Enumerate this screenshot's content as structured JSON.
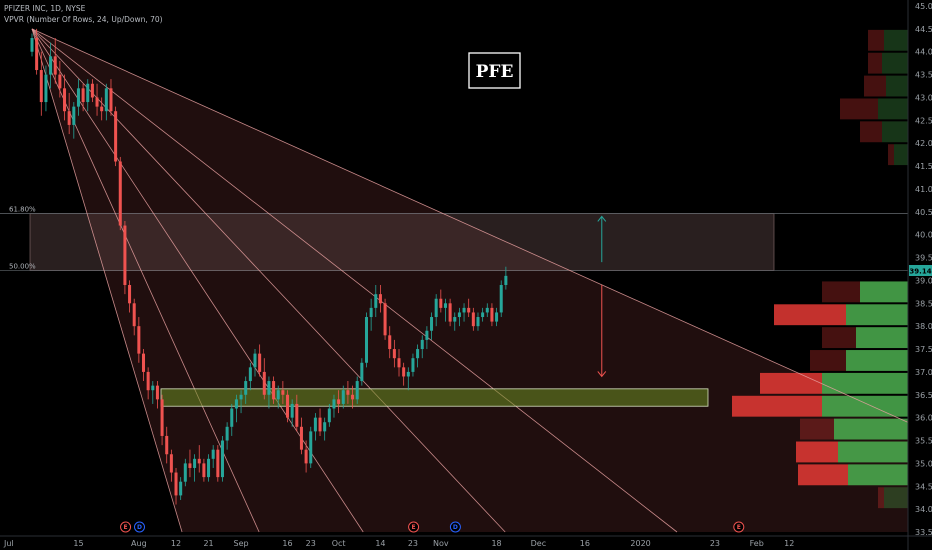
{
  "header": {
    "symbol_line": "PFIZER INC, 1D, NYSE",
    "indicator_line": "VPVR (Number Of Rows, 24, Up/Down, 70)"
  },
  "ticker_box": "PFE",
  "colors": {
    "up": "#26a69a",
    "down": "#ef5350",
    "fan": "#e8a0a0",
    "zone": "#6b8e23",
    "vp_up": "#4caf50",
    "vp_down": "#e53935"
  },
  "price_tag": "39.14",
  "chart_data": {
    "type": "candlestick",
    "title": "",
    "xlabel": "",
    "ylabel": "",
    "ylim": [
      33.5,
      45.0
    ],
    "grid": false,
    "y_ticks": [
      "33.50",
      "34.00",
      "34.50",
      "35.00",
      "35.50",
      "36.00",
      "36.50",
      "37.00",
      "37.50",
      "38.00",
      "38.50",
      "39.00",
      "39.50",
      "40.00",
      "40.50",
      "41.00",
      "41.50",
      "42.00",
      "42.50",
      "43.00",
      "43.50",
      "44.00",
      "44.50",
      "45.00"
    ],
    "x_ticks": [
      {
        "label": "Jul",
        "i": 0
      },
      {
        "label": "15",
        "i": 10
      },
      {
        "label": "Aug",
        "i": 23
      },
      {
        "label": "12",
        "i": 31
      },
      {
        "label": "21",
        "i": 38
      },
      {
        "label": "Sep",
        "i": 45
      },
      {
        "label": "16",
        "i": 55
      },
      {
        "label": "23",
        "i": 60
      },
      {
        "label": "Oct",
        "i": 66
      },
      {
        "label": "14",
        "i": 75
      },
      {
        "label": "23",
        "i": 82
      },
      {
        "label": "Nov",
        "i": 88
      },
      {
        "label": "18",
        "i": 100
      },
      {
        "label": "Dec",
        "i": 109
      },
      {
        "label": "16",
        "i": 119
      },
      {
        "label": "2020",
        "i": 131
      },
      {
        "label": "23",
        "i": 147
      },
      {
        "label": "Feb",
        "i": 156
      },
      {
        "label": "12",
        "i": 163
      }
    ],
    "x_axis_max_index": 175,
    "candles": [
      [
        44.0,
        44.4,
        43.9,
        44.3
      ],
      [
        44.3,
        44.5,
        43.5,
        43.6
      ],
      [
        43.6,
        44.0,
        42.6,
        42.9
      ],
      [
        42.9,
        43.7,
        42.7,
        43.5
      ],
      [
        43.5,
        44.2,
        43.2,
        43.9
      ],
      [
        43.9,
        44.3,
        43.3,
        43.5
      ],
      [
        43.5,
        43.8,
        43.0,
        43.2
      ],
      [
        43.2,
        43.5,
        42.5,
        42.7
      ],
      [
        42.7,
        43.1,
        42.2,
        42.4
      ],
      [
        42.4,
        42.9,
        42.1,
        42.8
      ],
      [
        42.8,
        43.4,
        42.6,
        43.2
      ],
      [
        43.2,
        43.3,
        42.7,
        42.9
      ],
      [
        42.9,
        43.4,
        42.7,
        43.3
      ],
      [
        43.3,
        43.4,
        42.9,
        43.0
      ],
      [
        43.0,
        43.3,
        42.6,
        42.8
      ],
      [
        42.8,
        43.0,
        42.5,
        42.7
      ],
      [
        42.7,
        43.3,
        42.5,
        43.2
      ],
      [
        43.2,
        43.4,
        42.6,
        42.7
      ],
      [
        42.7,
        42.8,
        41.5,
        41.6
      ],
      [
        41.6,
        41.7,
        40.1,
        40.2
      ],
      [
        40.2,
        40.3,
        38.7,
        38.9
      ],
      [
        38.9,
        39.0,
        38.3,
        38.5
      ],
      [
        38.5,
        38.6,
        37.8,
        38.0
      ],
      [
        38.0,
        38.2,
        37.2,
        37.4
      ],
      [
        37.4,
        37.5,
        36.8,
        37.0
      ],
      [
        37.0,
        37.1,
        36.4,
        36.6
      ],
      [
        36.6,
        36.8,
        36.3,
        36.7
      ],
      [
        36.7,
        36.8,
        36.2,
        36.4
      ],
      [
        36.4,
        36.5,
        35.4,
        35.6
      ],
      [
        35.6,
        35.8,
        35.0,
        35.2
      ],
      [
        35.2,
        35.3,
        34.6,
        34.8
      ],
      [
        34.8,
        34.9,
        34.1,
        34.3
      ],
      [
        34.3,
        34.7,
        34.2,
        34.6
      ],
      [
        34.6,
        35.1,
        34.5,
        35.0
      ],
      [
        35.0,
        35.3,
        34.7,
        34.9
      ],
      [
        34.9,
        35.2,
        34.6,
        35.1
      ],
      [
        35.1,
        35.4,
        34.8,
        35.0
      ],
      [
        35.0,
        35.1,
        34.6,
        34.7
      ],
      [
        34.7,
        35.2,
        34.6,
        35.1
      ],
      [
        35.1,
        35.4,
        34.9,
        35.3
      ],
      [
        35.3,
        35.4,
        34.6,
        34.7
      ],
      [
        34.7,
        35.6,
        34.6,
        35.5
      ],
      [
        35.5,
        35.9,
        35.3,
        35.8
      ],
      [
        35.8,
        36.3,
        35.6,
        36.2
      ],
      [
        36.2,
        36.5,
        35.9,
        36.4
      ],
      [
        36.4,
        36.6,
        36.1,
        36.5
      ],
      [
        36.5,
        36.9,
        36.3,
        36.8
      ],
      [
        36.8,
        37.2,
        36.6,
        37.1
      ],
      [
        37.1,
        37.5,
        36.9,
        37.4
      ],
      [
        37.4,
        37.6,
        36.9,
        37.0
      ],
      [
        37.0,
        37.3,
        36.4,
        36.5
      ],
      [
        36.5,
        36.9,
        36.2,
        36.8
      ],
      [
        36.8,
        36.9,
        36.3,
        36.4
      ],
      [
        36.4,
        36.7,
        36.2,
        36.6
      ],
      [
        36.6,
        36.8,
        36.3,
        36.5
      ],
      [
        36.5,
        36.6,
        35.9,
        36.0
      ],
      [
        36.0,
        36.4,
        35.8,
        36.3
      ],
      [
        36.3,
        36.5,
        35.7,
        35.8
      ],
      [
        35.8,
        36.0,
        35.2,
        35.3
      ],
      [
        35.3,
        35.5,
        34.8,
        35.0
      ],
      [
        35.0,
        35.8,
        34.9,
        35.7
      ],
      [
        35.7,
        36.1,
        35.5,
        36.0
      ],
      [
        36.0,
        36.2,
        35.6,
        35.7
      ],
      [
        35.7,
        36.0,
        35.5,
        35.9
      ],
      [
        35.9,
        36.3,
        35.8,
        36.2
      ],
      [
        36.2,
        36.5,
        36.0,
        36.4
      ],
      [
        36.4,
        36.6,
        36.1,
        36.3
      ],
      [
        36.3,
        36.7,
        36.2,
        36.6
      ],
      [
        36.6,
        36.8,
        36.3,
        36.5
      ],
      [
        36.5,
        36.7,
        36.2,
        36.4
      ],
      [
        36.4,
        36.9,
        36.3,
        36.8
      ],
      [
        36.8,
        37.3,
        36.7,
        37.2
      ],
      [
        37.2,
        38.3,
        37.1,
        38.2
      ],
      [
        38.2,
        38.6,
        37.9,
        38.4
      ],
      [
        38.4,
        38.9,
        38.2,
        38.7
      ],
      [
        38.7,
        38.9,
        38.3,
        38.5
      ],
      [
        38.5,
        38.6,
        37.7,
        37.8
      ],
      [
        37.8,
        38.0,
        37.3,
        37.5
      ],
      [
        37.5,
        37.7,
        37.1,
        37.3
      ],
      [
        37.3,
        37.5,
        36.9,
        37.1
      ],
      [
        37.1,
        37.2,
        36.7,
        36.9
      ],
      [
        36.9,
        37.1,
        36.6,
        37.0
      ],
      [
        37.0,
        37.4,
        36.9,
        37.3
      ],
      [
        37.3,
        37.6,
        37.1,
        37.5
      ],
      [
        37.5,
        37.8,
        37.3,
        37.7
      ],
      [
        37.7,
        38.0,
        37.5,
        37.9
      ],
      [
        37.9,
        38.3,
        37.7,
        38.2
      ],
      [
        38.2,
        38.7,
        38.0,
        38.6
      ],
      [
        38.6,
        38.8,
        38.3,
        38.4
      ],
      [
        38.4,
        38.6,
        38.1,
        38.5
      ],
      [
        38.5,
        38.6,
        38.0,
        38.1
      ],
      [
        38.1,
        38.3,
        37.9,
        38.2
      ],
      [
        38.2,
        38.4,
        38.0,
        38.3
      ],
      [
        38.3,
        38.5,
        38.1,
        38.4
      ],
      [
        38.4,
        38.6,
        38.2,
        38.3
      ],
      [
        38.3,
        38.4,
        37.9,
        38.0
      ],
      [
        38.0,
        38.3,
        37.9,
        38.2
      ],
      [
        38.2,
        38.4,
        38.1,
        38.3
      ],
      [
        38.3,
        38.5,
        38.2,
        38.4
      ],
      [
        38.4,
        38.5,
        38.0,
        38.1
      ],
      [
        38.1,
        38.4,
        38.0,
        38.3
      ],
      [
        38.3,
        39.0,
        38.2,
        38.9
      ],
      [
        38.9,
        39.3,
        38.8,
        39.1
      ]
    ],
    "candle_x_indices": [
      0,
      1,
      2,
      3,
      4,
      5,
      6,
      7,
      8,
      9,
      10,
      11,
      12,
      13,
      14,
      15,
      16,
      17,
      18,
      19,
      20,
      21,
      22,
      23,
      24,
      25,
      26,
      27,
      28,
      29,
      30,
      31,
      32,
      33,
      34,
      35,
      36,
      37,
      38,
      39,
      40,
      41,
      42,
      43,
      44,
      45,
      46,
      47,
      48,
      49,
      50,
      51,
      52,
      53,
      54,
      55,
      56,
      57,
      58,
      59,
      60,
      61,
      62,
      63,
      64,
      65,
      66,
      67,
      68,
      69,
      70,
      71,
      72,
      73,
      74,
      75,
      76,
      77,
      78,
      79,
      80,
      81,
      82,
      83,
      84,
      85,
      86,
      87,
      88,
      89,
      90,
      91,
      92,
      93,
      94,
      95,
      96,
      97,
      98,
      99,
      100,
      101,
      102,
      103
    ],
    "fib_levels": [
      {
        "label": "61.80%",
        "price": 40.46
      },
      {
        "label": "50.00%",
        "price": 39.22
      }
    ],
    "support_zone": {
      "low": 36.25,
      "high": 36.63
    },
    "fan_origin": {
      "i": 0,
      "price": 44.5
    },
    "fan_targets": [
      {
        "i": 160,
        "price": 37.2
      },
      {
        "i": 130,
        "price": 34.2
      },
      {
        "i": 100,
        "price": 33.7
      },
      {
        "i": 70,
        "price": 33.7
      },
      {
        "i": 48,
        "price": 33.7
      },
      {
        "i": 32,
        "price": 33.6
      }
    ],
    "arrows": [
      {
        "i": 122,
        "from": 39.4,
        "to": 40.4,
        "direction": "up"
      },
      {
        "i": 122,
        "from": 38.9,
        "to": 36.9,
        "direction": "down"
      }
    ],
    "volume_profile": [
      {
        "price": 44.25,
        "up": 0.24,
        "down": 0.16
      },
      {
        "price": 43.75,
        "up": 0.26,
        "down": 0.14
      },
      {
        "price": 43.25,
        "up": 0.22,
        "down": 0.22
      },
      {
        "price": 42.75,
        "up": 0.3,
        "down": 0.38
      },
      {
        "price": 42.25,
        "up": 0.26,
        "down": 0.22
      },
      {
        "price": 41.75,
        "up": 0.14,
        "down": 0.06
      },
      {
        "price": 38.75,
        "up": 0.48,
        "down": 0.38
      },
      {
        "price": 38.25,
        "up": 0.62,
        "down": 0.72
      },
      {
        "price": 37.75,
        "up": 0.52,
        "down": 0.34
      },
      {
        "price": 37.25,
        "up": 0.62,
        "down": 0.36
      },
      {
        "price": 36.75,
        "up": 0.86,
        "down": 0.62
      },
      {
        "price": 36.25,
        "up": 0.86,
        "down": 0.9
      },
      {
        "price": 35.75,
        "up": 0.74,
        "down": 0.34
      },
      {
        "price": 35.25,
        "up": 0.7,
        "down": 0.42
      },
      {
        "price": 34.75,
        "up": 0.6,
        "down": 0.5
      },
      {
        "price": 34.25,
        "up": 0.24,
        "down": 0.06
      }
    ],
    "event_badges": [
      {
        "i": 21,
        "kind": "E"
      },
      {
        "i": 24,
        "kind": "D"
      },
      {
        "i": 83,
        "kind": "E"
      },
      {
        "i": 92,
        "kind": "D"
      },
      {
        "i": 153,
        "kind": "E"
      }
    ]
  }
}
